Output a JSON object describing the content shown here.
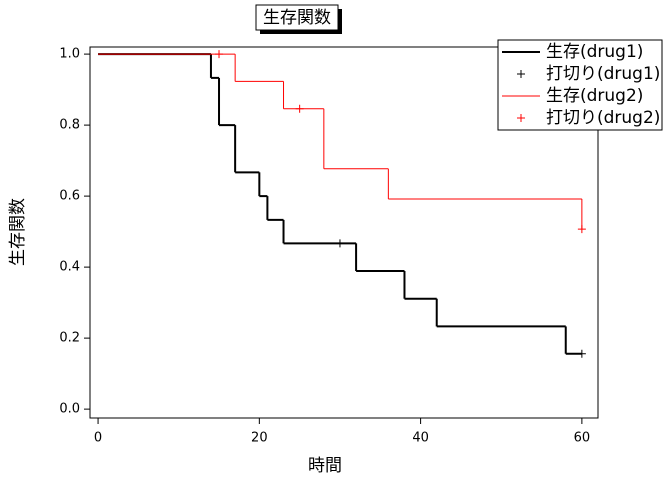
{
  "chart_data": {
    "type": "step",
    "title": "生存関数",
    "x_label": "時間",
    "y_label": "生存関数",
    "xlim": [
      -1,
      62
    ],
    "ylim": [
      -0.025,
      1.02
    ],
    "xticks": [
      0,
      20,
      40,
      60
    ],
    "yticks": [
      {
        "value": 0,
        "label": "0.0"
      },
      0.2,
      0.4,
      0.6,
      0.8,
      {
        "value": 1,
        "label": "1.0"
      }
    ],
    "legend": "top-right",
    "series": [
      {
        "name": "生存(drug1)",
        "color": "#000000",
        "style": "step",
        "x": [
          0,
          14,
          15,
          17,
          20,
          21,
          23,
          32,
          38,
          42,
          58,
          60
        ],
        "values": [
          1,
          0.933,
          0.8,
          0.667,
          0.6,
          0.533,
          0.467,
          0.389,
          0.311,
          0.233,
          0.156,
          0.156
        ]
      },
      {
        "name": "打切り(drug1)",
        "color": "#000000",
        "style": "marker",
        "x": [
          30,
          60
        ],
        "values": [
          0.467,
          0.156
        ]
      },
      {
        "name": "生存(drug2)",
        "color": "#ff0000",
        "style": "step",
        "x": [
          0,
          17,
          23,
          28,
          36,
          60
        ],
        "values": [
          1,
          0.923,
          0.846,
          0.677,
          0.592,
          0.507
        ]
      },
      {
        "name": "打切り(drug2)",
        "color": "#ff0000",
        "style": "marker",
        "x": [
          15,
          25,
          60
        ],
        "values": [
          1,
          0.846,
          0.507
        ]
      }
    ]
  }
}
